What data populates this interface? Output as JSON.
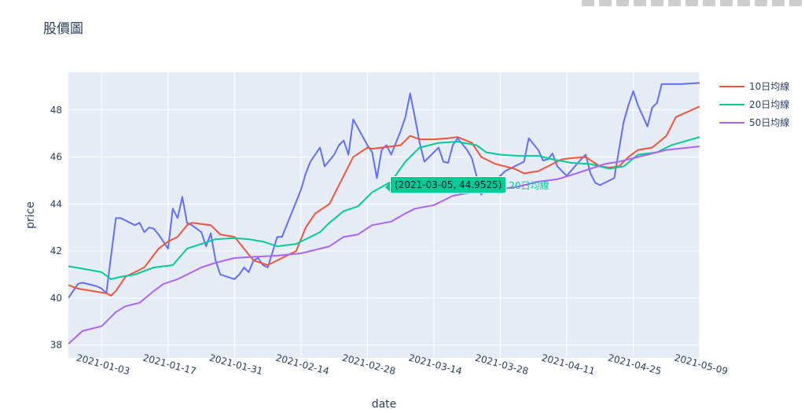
{
  "title": "股價圖",
  "modebar": {
    "icons": [
      "camera-icon",
      "zoom-icon",
      "pan-icon",
      "box-select-icon",
      "lasso-icon",
      "zoom-in-icon",
      "zoom-out-icon",
      "autoscale-icon",
      "reset-axes-icon",
      "spike-lines-icon",
      "hover-closest-icon",
      "hover-compare-icon",
      "plotly-logo-icon"
    ]
  },
  "hover": {
    "text": "(2021-03-05, 44.9525)",
    "series_name": "20日均線"
  },
  "chart_data": {
    "type": "line",
    "xlabel": "date",
    "ylabel": "price",
    "x_type": "date",
    "xlim": [
      "2020-12-27",
      "2021-05-09"
    ],
    "ylim": [
      37.45,
      49.6
    ],
    "x_ticks": [
      "2021-01-03",
      "2021-01-17",
      "2021-01-31",
      "2021-02-14",
      "2021-02-28",
      "2021-03-14",
      "2021-03-28",
      "2021-04-11",
      "2021-04-25",
      "2021-05-09"
    ],
    "y_ticks": [
      38,
      40,
      42,
      44,
      46,
      48
    ],
    "background": "#e5ecf6",
    "legend_placement": "right",
    "series": [
      {
        "name": "",
        "color": "#636efa",
        "points": [
          [
            "2020-12-27",
            40.0
          ],
          [
            "2020-12-28",
            40.3
          ],
          [
            "2020-12-29",
            40.6
          ],
          [
            "2020-12-30",
            40.65
          ],
          [
            "2020-12-31",
            40.6
          ],
          [
            "2021-01-02",
            40.5
          ],
          [
            "2021-01-03",
            40.4
          ],
          [
            "2021-01-04",
            40.2
          ],
          [
            "2021-01-05",
            41.8
          ],
          [
            "2021-01-06",
            43.4
          ],
          [
            "2021-01-07",
            43.4
          ],
          [
            "2021-01-08",
            43.3
          ],
          [
            "2021-01-10",
            43.1
          ],
          [
            "2021-01-11",
            43.2
          ],
          [
            "2021-01-12",
            42.8
          ],
          [
            "2021-01-13",
            43.0
          ],
          [
            "2021-01-14",
            42.95
          ],
          [
            "2021-01-15",
            42.7
          ],
          [
            "2021-01-17",
            42.1
          ],
          [
            "2021-01-18",
            43.8
          ],
          [
            "2021-01-19",
            43.4
          ],
          [
            "2021-01-20",
            44.3
          ],
          [
            "2021-01-21",
            43.2
          ],
          [
            "2021-01-22",
            43.1
          ],
          [
            "2021-01-24",
            42.8
          ],
          [
            "2021-01-25",
            42.2
          ],
          [
            "2021-01-26",
            42.75
          ],
          [
            "2021-01-27",
            41.6
          ],
          [
            "2021-01-28",
            41.0
          ],
          [
            "2021-01-31",
            40.8
          ],
          [
            "2021-02-01",
            41.0
          ],
          [
            "2021-02-02",
            41.3
          ],
          [
            "2021-02-03",
            41.1
          ],
          [
            "2021-02-04",
            41.6
          ],
          [
            "2021-02-05",
            41.7
          ],
          [
            "2021-02-06",
            41.4
          ],
          [
            "2021-02-07",
            41.3
          ],
          [
            "2021-02-09",
            42.6
          ],
          [
            "2021-02-10",
            42.6
          ],
          [
            "2021-02-11",
            43.1
          ],
          [
            "2021-02-14",
            44.6
          ],
          [
            "2021-02-15",
            45.3
          ],
          [
            "2021-02-16",
            45.8
          ],
          [
            "2021-02-18",
            46.4
          ],
          [
            "2021-02-19",
            45.6
          ],
          [
            "2021-02-21",
            46.1
          ],
          [
            "2021-02-22",
            46.5
          ],
          [
            "2021-02-23",
            46.7
          ],
          [
            "2021-02-24",
            46.1
          ],
          [
            "2021-02-25",
            47.6
          ],
          [
            "2021-02-28",
            46.5
          ],
          [
            "2021-03-01",
            46.2
          ],
          [
            "2021-03-02",
            45.1
          ],
          [
            "2021-03-03",
            46.3
          ],
          [
            "2021-03-04",
            46.5
          ],
          [
            "2021-03-05",
            46.1
          ],
          [
            "2021-03-07",
            47.1
          ],
          [
            "2021-03-08",
            47.7
          ],
          [
            "2021-03-09",
            48.7
          ],
          [
            "2021-03-10",
            47.7
          ],
          [
            "2021-03-11",
            46.6
          ],
          [
            "2021-03-12",
            45.8
          ],
          [
            "2021-03-14",
            46.2
          ],
          [
            "2021-03-15",
            46.4
          ],
          [
            "2021-03-16",
            45.8
          ],
          [
            "2021-03-17",
            45.75
          ],
          [
            "2021-03-18",
            46.5
          ],
          [
            "2021-03-19",
            46.8
          ],
          [
            "2021-03-21",
            46.3
          ],
          [
            "2021-03-22",
            45.95
          ],
          [
            "2021-03-24",
            44.4
          ],
          [
            "2021-03-25",
            44.8
          ],
          [
            "2021-03-28",
            45.2
          ],
          [
            "2021-03-29",
            45.4
          ],
          [
            "2021-04-02",
            45.8
          ],
          [
            "2021-04-03",
            46.8
          ],
          [
            "2021-04-05",
            46.3
          ],
          [
            "2021-04-06",
            45.85
          ],
          [
            "2021-04-07",
            45.9
          ],
          [
            "2021-04-08",
            46.15
          ],
          [
            "2021-04-09",
            45.6
          ],
          [
            "2021-04-11",
            45.2
          ],
          [
            "2021-04-14",
            45.9
          ],
          [
            "2021-04-15",
            46.1
          ],
          [
            "2021-04-16",
            45.3
          ],
          [
            "2021-04-17",
            44.9
          ],
          [
            "2021-04-18",
            44.8
          ],
          [
            "2021-04-20",
            45.0
          ],
          [
            "2021-04-21",
            45.1
          ],
          [
            "2021-04-23",
            47.5
          ],
          [
            "2021-04-24",
            48.2
          ],
          [
            "2021-04-25",
            48.8
          ],
          [
            "2021-04-26",
            48.2
          ],
          [
            "2021-04-28",
            47.3
          ],
          [
            "2021-04-29",
            48.1
          ],
          [
            "2021-04-30",
            48.3
          ],
          [
            "2021-05-01",
            49.1
          ],
          [
            "2021-05-02",
            49.1
          ],
          [
            "2021-05-03",
            49.1
          ],
          [
            "2021-05-05",
            49.1
          ],
          [
            "2021-05-09",
            49.15
          ]
        ]
      },
      {
        "name": "10日均線",
        "color": "#ef553b",
        "points": [
          [
            "2020-12-27",
            40.55
          ],
          [
            "2020-12-29",
            40.4
          ],
          [
            "2021-01-01",
            40.3
          ],
          [
            "2021-01-04",
            40.2
          ],
          [
            "2021-01-05",
            40.1
          ],
          [
            "2021-01-06",
            40.3
          ],
          [
            "2021-01-08",
            40.9
          ],
          [
            "2021-01-10",
            41.1
          ],
          [
            "2021-01-12",
            41.3
          ],
          [
            "2021-01-15",
            42.1
          ],
          [
            "2021-01-17",
            42.4
          ],
          [
            "2021-01-19",
            42.6
          ],
          [
            "2021-01-21",
            43.1
          ],
          [
            "2021-01-22",
            43.2
          ],
          [
            "2021-01-26",
            43.1
          ],
          [
            "2021-01-28",
            42.7
          ],
          [
            "2021-01-31",
            42.6
          ],
          [
            "2021-02-02",
            42.1
          ],
          [
            "2021-02-04",
            41.6
          ],
          [
            "2021-02-07",
            41.4
          ],
          [
            "2021-02-10",
            41.7
          ],
          [
            "2021-02-13",
            42.0
          ],
          [
            "2021-02-15",
            43.0
          ],
          [
            "2021-02-17",
            43.6
          ],
          [
            "2021-02-20",
            44.0
          ],
          [
            "2021-02-22",
            44.8
          ],
          [
            "2021-02-25",
            46.0
          ],
          [
            "2021-02-28",
            46.4
          ],
          [
            "2021-03-01",
            46.35
          ],
          [
            "2021-03-03",
            46.4
          ],
          [
            "2021-03-05",
            46.45
          ],
          [
            "2021-03-07",
            46.5
          ],
          [
            "2021-03-09",
            46.9
          ],
          [
            "2021-03-11",
            46.75
          ],
          [
            "2021-03-14",
            46.75
          ],
          [
            "2021-03-17",
            46.8
          ],
          [
            "2021-03-19",
            46.85
          ],
          [
            "2021-03-22",
            46.6
          ],
          [
            "2021-03-24",
            46.0
          ],
          [
            "2021-03-27",
            45.7
          ],
          [
            "2021-03-31",
            45.5
          ],
          [
            "2021-04-02",
            45.3
          ],
          [
            "2021-04-05",
            45.4
          ],
          [
            "2021-04-07",
            45.6
          ],
          [
            "2021-04-10",
            45.9
          ],
          [
            "2021-04-12",
            45.95
          ],
          [
            "2021-04-15",
            46.0
          ],
          [
            "2021-04-18",
            45.6
          ],
          [
            "2021-04-20",
            45.55
          ],
          [
            "2021-04-22",
            45.6
          ],
          [
            "2021-04-24",
            46.0
          ],
          [
            "2021-04-26",
            46.3
          ],
          [
            "2021-04-29",
            46.4
          ],
          [
            "2021-05-02",
            46.9
          ],
          [
            "2021-05-04",
            47.7
          ],
          [
            "2021-05-09",
            48.15
          ]
        ]
      },
      {
        "name": "20日均線",
        "color": "#00cc96",
        "points": [
          [
            "2020-12-27",
            41.35
          ],
          [
            "2020-12-30",
            41.25
          ],
          [
            "2021-01-03",
            41.1
          ],
          [
            "2021-01-05",
            40.8
          ],
          [
            "2021-01-07",
            40.9
          ],
          [
            "2021-01-10",
            41.0
          ],
          [
            "2021-01-14",
            41.3
          ],
          [
            "2021-01-18",
            41.4
          ],
          [
            "2021-01-21",
            42.1
          ],
          [
            "2021-01-24",
            42.3
          ],
          [
            "2021-01-27",
            42.5
          ],
          [
            "2021-01-31",
            42.55
          ],
          [
            "2021-02-03",
            42.5
          ],
          [
            "2021-02-06",
            42.4
          ],
          [
            "2021-02-09",
            42.2
          ],
          [
            "2021-02-13",
            42.3
          ],
          [
            "2021-02-15",
            42.5
          ],
          [
            "2021-02-18",
            42.8
          ],
          [
            "2021-02-20",
            43.2
          ],
          [
            "2021-02-23",
            43.7
          ],
          [
            "2021-02-26",
            43.9
          ],
          [
            "2021-03-01",
            44.5
          ],
          [
            "2021-03-05",
            44.9525
          ],
          [
            "2021-03-08",
            45.8
          ],
          [
            "2021-03-11",
            46.4
          ],
          [
            "2021-03-15",
            46.6
          ],
          [
            "2021-03-19",
            46.65
          ],
          [
            "2021-03-23",
            46.5
          ],
          [
            "2021-03-25",
            46.2
          ],
          [
            "2021-03-28",
            46.1
          ],
          [
            "2021-04-01",
            46.05
          ],
          [
            "2021-04-05",
            46.05
          ],
          [
            "2021-04-08",
            45.9
          ],
          [
            "2021-04-12",
            45.75
          ],
          [
            "2021-04-16",
            45.7
          ],
          [
            "2021-04-20",
            45.5
          ],
          [
            "2021-04-23",
            45.6
          ],
          [
            "2021-04-26",
            46.1
          ],
          [
            "2021-04-30",
            46.2
          ],
          [
            "2021-05-03",
            46.5
          ],
          [
            "2021-05-09",
            46.85
          ]
        ]
      },
      {
        "name": "50日均線",
        "color": "#ab63fa",
        "points": [
          [
            "2020-12-27",
            38.05
          ],
          [
            "2020-12-30",
            38.6
          ],
          [
            "2021-01-03",
            38.8
          ],
          [
            "2021-01-06",
            39.4
          ],
          [
            "2021-01-08",
            39.65
          ],
          [
            "2021-01-11",
            39.8
          ],
          [
            "2021-01-14",
            40.3
          ],
          [
            "2021-01-16",
            40.6
          ],
          [
            "2021-01-19",
            40.8
          ],
          [
            "2021-01-22",
            41.1
          ],
          [
            "2021-01-24",
            41.3
          ],
          [
            "2021-01-27",
            41.5
          ],
          [
            "2021-01-31",
            41.7
          ],
          [
            "2021-02-04",
            41.75
          ],
          [
            "2021-02-09",
            41.8
          ],
          [
            "2021-02-14",
            41.9
          ],
          [
            "2021-02-17",
            42.05
          ],
          [
            "2021-02-20",
            42.2
          ],
          [
            "2021-02-23",
            42.6
          ],
          [
            "2021-02-26",
            42.7
          ],
          [
            "2021-03-01",
            43.1
          ],
          [
            "2021-03-05",
            43.25
          ],
          [
            "2021-03-08",
            43.6
          ],
          [
            "2021-03-10",
            43.8
          ],
          [
            "2021-03-14",
            43.95
          ],
          [
            "2021-03-18",
            44.35
          ],
          [
            "2021-03-22",
            44.5
          ],
          [
            "2021-03-27",
            44.6
          ],
          [
            "2021-04-01",
            44.75
          ],
          [
            "2021-04-05",
            44.95
          ],
          [
            "2021-04-09",
            45.05
          ],
          [
            "2021-04-13",
            45.3
          ],
          [
            "2021-04-16",
            45.5
          ],
          [
            "2021-04-19",
            45.7
          ],
          [
            "2021-04-22",
            45.8
          ],
          [
            "2021-04-25",
            45.95
          ],
          [
            "2021-04-28",
            46.1
          ],
          [
            "2021-05-02",
            46.3
          ],
          [
            "2021-05-09",
            46.45
          ]
        ]
      }
    ]
  }
}
